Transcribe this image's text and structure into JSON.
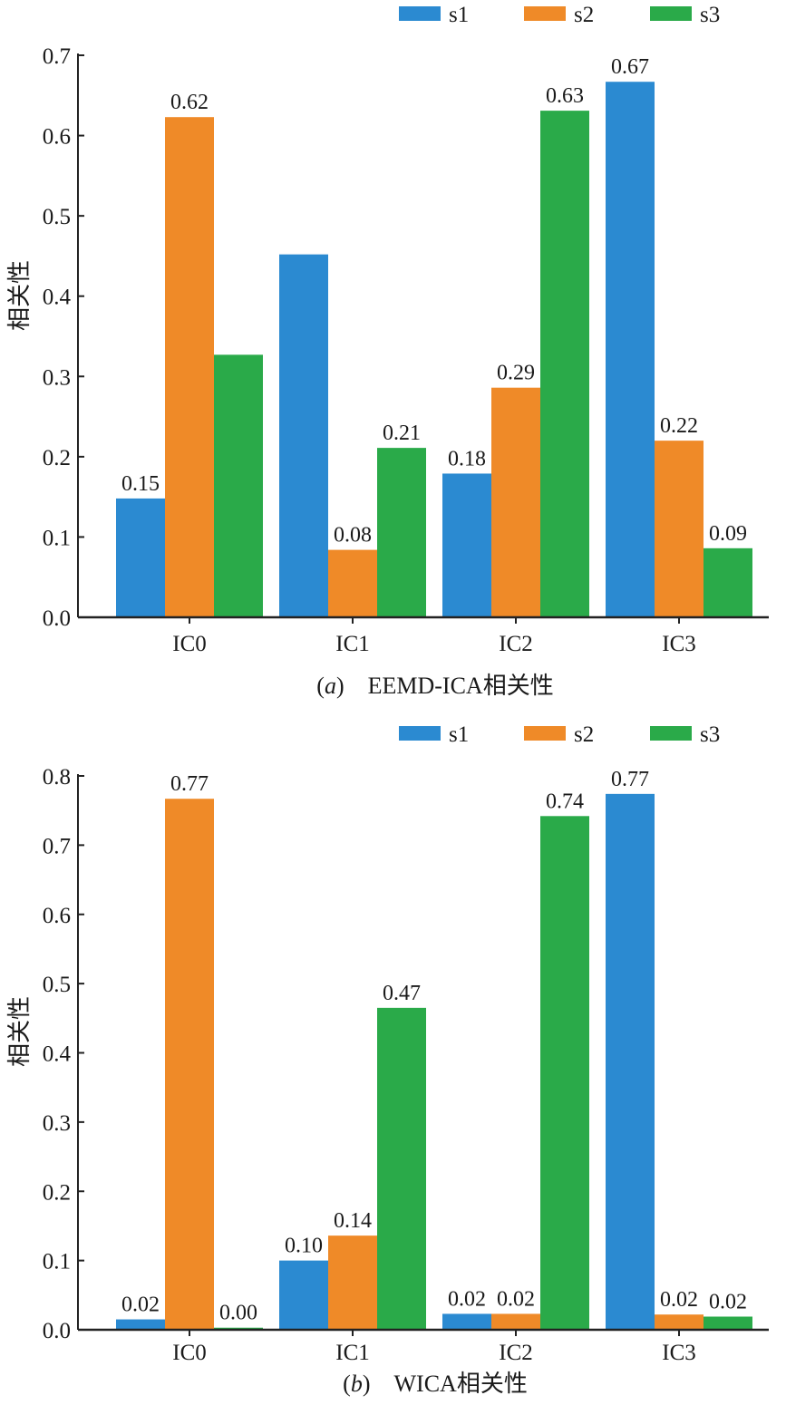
{
  "charts": [
    {
      "panel": "a",
      "caption_letter": "a",
      "caption_text": "EEMD-ICA相关性",
      "chart_data": {
        "type": "bar",
        "categories": [
          "IC0",
          "IC1",
          "IC2",
          "IC3"
        ],
        "series": [
          {
            "name": "s1",
            "color": "#2b8ad1",
            "values": [
              0.148,
              0.452,
              0.179,
              0.667
            ],
            "labels": [
              "0.15",
              "",
              "0.18",
              "0.67"
            ]
          },
          {
            "name": "s2",
            "color": "#ef8a28",
            "values": [
              0.623,
              0.084,
              0.286,
              0.22
            ],
            "labels": [
              "0.62",
              "0.08",
              "0.29",
              "0.22"
            ]
          },
          {
            "name": "s3",
            "color": "#2aaa49",
            "values": [
              0.327,
              0.211,
              0.631,
              0.086
            ],
            "labels": [
              "",
              "0.21",
              "0.63",
              "0.09"
            ]
          }
        ],
        "ylabel": "相关性",
        "ylim": [
          0,
          0.7
        ],
        "yticks": [
          "0.0",
          "0.1",
          "0.2",
          "0.3",
          "0.4",
          "0.5",
          "0.6",
          "0.7"
        ],
        "legend": "top-right",
        "grid": false
      }
    },
    {
      "panel": "b",
      "caption_letter": "b",
      "caption_text": "WICA相关性",
      "chart_data": {
        "type": "bar",
        "categories": [
          "IC0",
          "IC1",
          "IC2",
          "IC3"
        ],
        "series": [
          {
            "name": "s1",
            "color": "#2b8ad1",
            "values": [
              0.015,
              0.1,
              0.023,
              0.774
            ],
            "labels": [
              "0.02",
              "0.10",
              "0.02",
              "0.77"
            ]
          },
          {
            "name": "s2",
            "color": "#ef8a28",
            "values": [
              0.767,
              0.136,
              0.023,
              0.022
            ],
            "labels": [
              "0.77",
              "0.14",
              "0.02",
              "0.02"
            ]
          },
          {
            "name": "s3",
            "color": "#2aaa49",
            "values": [
              0.003,
              0.465,
              0.742,
              0.019
            ],
            "labels": [
              "0.00",
              "0.47",
              "0.74",
              "0.02"
            ]
          }
        ],
        "ylabel": "相关性",
        "ylim": [
          0,
          0.8
        ],
        "yticks": [
          "0.0",
          "0.1",
          "0.2",
          "0.3",
          "0.4",
          "0.5",
          "0.6",
          "0.7",
          "0.8"
        ],
        "legend": "top-right",
        "grid": false
      }
    }
  ]
}
